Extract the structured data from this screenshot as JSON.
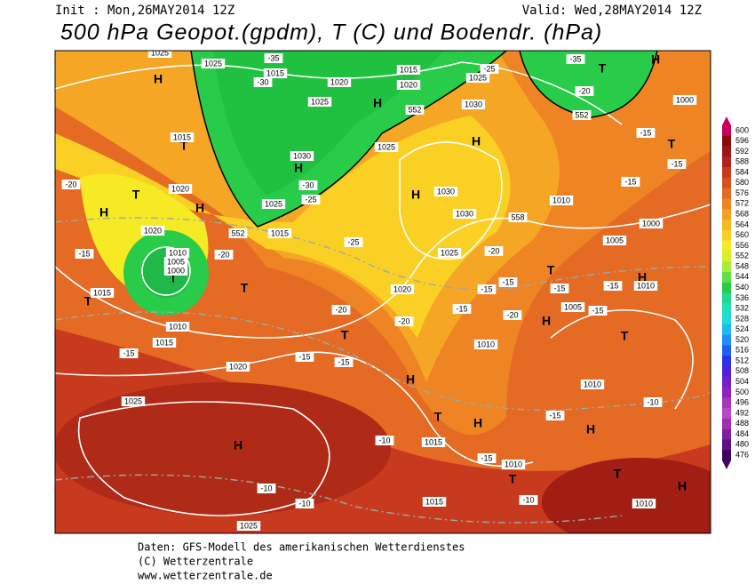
{
  "header": {
    "init": "Init : Mon,26MAY2014 12Z",
    "valid": "Valid: Wed,28MAY2014 12Z",
    "title": "500 hPa Geopot.(gpdm), T (C) und Bodendr. (hPa)"
  },
  "colorbar": {
    "levels": [
      600,
      596,
      592,
      588,
      584,
      580,
      576,
      572,
      568,
      564,
      560,
      556,
      552,
      548,
      544,
      540,
      536,
      532,
      528,
      524,
      520,
      516,
      512,
      508,
      504,
      500,
      496,
      492,
      488,
      484,
      480,
      476
    ],
    "colors": [
      "#c8005a",
      "#8b0a0a",
      "#a01414",
      "#b82020",
      "#c83a1e",
      "#d85020",
      "#e56a24",
      "#ee8424",
      "#f49e24",
      "#f8b824",
      "#fbd024",
      "#f6ea24",
      "#d8f028",
      "#a8ec38",
      "#60e048",
      "#28cc48",
      "#20d890",
      "#20e0b8",
      "#20d8d8",
      "#20b8f0",
      "#2090f8",
      "#2060f0",
      "#3030e8",
      "#5020d8",
      "#7020c8",
      "#9020c0",
      "#a838b8",
      "#b848c8",
      "#a030b0",
      "#8020a0",
      "#601080",
      "#400060"
    ]
  },
  "map_labels": [
    "H",
    "H",
    "H",
    "H",
    "H",
    "H",
    "H",
    "H",
    "T",
    "T",
    "T",
    "T",
    "T",
    "T",
    "H",
    "T",
    "H",
    "H",
    "T",
    "T",
    "H",
    "H",
    "H",
    "T",
    "T",
    "H",
    "T",
    "T",
    "1025",
    "1025",
    "1015",
    "1020",
    "1025",
    "1015",
    "1020",
    "1030",
    "1025",
    "1015",
    "1020",
    "1010",
    "1005",
    "1000",
    "1015",
    "1010",
    "1015",
    "1020",
    "1025",
    "1025",
    "1015",
    "1015",
    "1010",
    "1010",
    "1010",
    "1010",
    "1005",
    "1010",
    "1005",
    "1000",
    "1010",
    "1030",
    "1030",
    "1025",
    "1020",
    "1015",
    "1020",
    "1025",
    "1030",
    "1025",
    "1000",
    "-35",
    "-30",
    "-35",
    "-25",
    "-20",
    "-30",
    "-25",
    "-20",
    "-15",
    "-20",
    "-25",
    "-20",
    "-15",
    "-15",
    "-20",
    "-20",
    "-15",
    "-20",
    "-15",
    "-15",
    "-15",
    "-15",
    "-15",
    "-15",
    "-15",
    "-15",
    "-10",
    "-10",
    "-10",
    "-10",
    "-10",
    "-15",
    "-15",
    "-15",
    "552",
    "552",
    "558",
    "552"
  ],
  "footer": [
    "Daten: GFS-Modell des amerikanischen Wetterdienstes",
    "(C) Wetterzentrale",
    "www.wetterzentrale.de"
  ]
}
